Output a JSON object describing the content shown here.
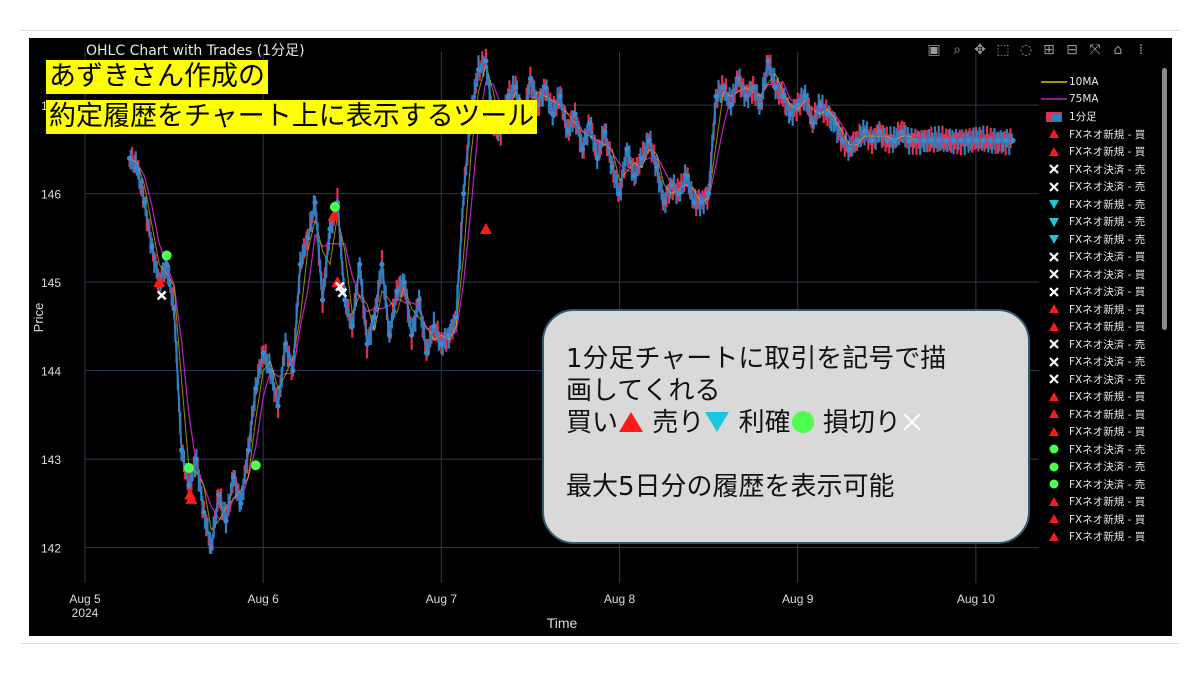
{
  "chart_data": {
    "type": "line",
    "title": "OHLC Chart with Trades (1分足)",
    "xlabel": "Time",
    "ylabel": "Price",
    "x_ticks": [
      "Aug 5\n2024",
      "Aug 6",
      "Aug 7",
      "Aug 8",
      "Aug 9",
      "Aug 10"
    ],
    "y_ticks": [
      142,
      143,
      144,
      145,
      146,
      147
    ],
    "ylim": [
      141.6,
      147.6
    ],
    "xlim_days": [
      "2024-08-05 00:00",
      "2024-08-10 08:30"
    ],
    "series": [
      {
        "name": "1分足",
        "color": "#2f7fc1",
        "x": [
          "08-05 06:00",
          "08-05 07:00",
          "08-05 08:00",
          "08-05 09:00",
          "08-05 10:00",
          "08-05 11:00",
          "08-05 12:00",
          "08-05 13:00",
          "08-05 14:00",
          "08-05 15:00",
          "08-05 16:00",
          "08-05 17:00",
          "08-05 18:00",
          "08-05 19:00",
          "08-05 20:00",
          "08-05 21:00",
          "08-05 22:00",
          "08-05 23:00",
          "08-06 00:00",
          "08-06 01:00",
          "08-06 02:00",
          "08-06 03:00",
          "08-06 04:00",
          "08-06 05:00",
          "08-06 06:00",
          "08-06 07:00",
          "08-06 08:00",
          "08-06 09:00",
          "08-06 10:00",
          "08-06 11:00",
          "08-06 12:00",
          "08-06 13:00",
          "08-06 14:00",
          "08-06 15:00",
          "08-06 16:00",
          "08-06 17:00",
          "08-06 18:00",
          "08-06 19:00",
          "08-06 20:00",
          "08-06 21:00",
          "08-06 22:00",
          "08-06 23:00",
          "08-07 00:00",
          "08-07 01:00",
          "08-07 02:00",
          "08-07 03:00",
          "08-07 04:00",
          "08-07 05:00",
          "08-07 06:00",
          "08-07 07:00",
          "08-07 08:00",
          "08-07 09:00",
          "08-07 10:00",
          "08-07 11:00",
          "08-07 12:00",
          "08-07 13:00",
          "08-07 14:00",
          "08-07 15:00",
          "08-07 16:00",
          "08-07 17:00",
          "08-07 18:00",
          "08-07 19:00",
          "08-07 20:00",
          "08-07 21:00",
          "08-07 22:00",
          "08-07 23:00",
          "08-08 00:00",
          "08-08 01:00",
          "08-08 02:00",
          "08-08 03:00",
          "08-08 04:00",
          "08-08 05:00",
          "08-08 06:00",
          "08-08 07:00",
          "08-08 08:00",
          "08-08 09:00",
          "08-08 10:00",
          "08-08 11:00",
          "08-08 12:00",
          "08-08 13:00",
          "08-08 14:00",
          "08-08 15:00",
          "08-08 16:00",
          "08-08 17:00",
          "08-08 18:00",
          "08-08 19:00",
          "08-08 20:00",
          "08-08 21:00",
          "08-08 22:00",
          "08-08 23:00",
          "08-09 00:00",
          "08-09 01:00",
          "08-09 02:00",
          "08-09 03:00",
          "08-09 04:00",
          "08-09 05:00",
          "08-09 06:00",
          "08-09 07:00",
          "08-09 08:00",
          "08-09 09:00",
          "08-09 10:00",
          "08-09 11:00",
          "08-09 12:00",
          "08-09 13:00",
          "08-09 14:00",
          "08-09 15:00",
          "08-09 16:00",
          "08-09 17:00",
          "08-09 18:00",
          "08-09 19:00",
          "08-09 20:00",
          "08-09 21:00",
          "08-09 22:00",
          "08-09 23:00",
          "08-10 00:00",
          "08-10 01:00",
          "08-10 02:00",
          "08-10 03:00",
          "08-10 04:00",
          "08-10 05:00"
        ],
        "values": [
          146.4,
          146.3,
          145.9,
          145.4,
          145.0,
          145.2,
          144.7,
          143.1,
          142.7,
          143.0,
          142.4,
          142.0,
          142.6,
          142.3,
          142.8,
          142.5,
          143.1,
          143.8,
          144.2,
          144.0,
          143.6,
          144.3,
          144.0,
          145.2,
          145.5,
          145.9,
          144.8,
          145.6,
          145.9,
          144.8,
          144.5,
          145.2,
          144.3,
          144.6,
          145.2,
          144.4,
          144.9,
          145.0,
          144.4,
          144.8,
          144.2,
          144.5,
          144.3,
          144.4,
          144.6,
          146.0,
          146.9,
          147.4,
          147.5,
          146.8,
          146.7,
          147.1,
          147.2,
          146.8,
          147.3,
          147.0,
          147.2,
          146.9,
          147.1,
          146.7,
          146.9,
          146.5,
          146.8,
          146.4,
          146.7,
          146.3,
          146.0,
          146.5,
          146.2,
          146.4,
          146.6,
          146.3,
          145.9,
          146.1,
          146.0,
          146.2,
          145.9,
          145.9,
          146.0,
          147.1,
          147.2,
          147.0,
          147.3,
          147.1,
          147.2,
          147.0,
          147.5,
          147.2,
          147.1,
          146.9,
          147.0,
          147.1,
          146.8,
          147.0,
          146.9,
          146.8,
          146.6,
          146.5,
          146.6,
          146.7,
          146.6,
          146.7,
          146.6,
          146.6,
          146.7,
          146.6,
          146.6,
          146.6,
          146.6,
          146.6,
          146.6,
          146.6,
          146.6,
          146.6,
          146.6,
          146.6,
          146.6,
          146.6,
          146.6,
          146.6
        ]
      },
      {
        "name": "10MA",
        "color": "#d8c400"
      },
      {
        "name": "75MA",
        "color": "#c020c0"
      }
    ],
    "trades": [
      {
        "x": "08-05 10:00",
        "y": 145.0,
        "type": "buy"
      },
      {
        "x": "08-05 10:20",
        "y": 144.85,
        "type": "stop"
      },
      {
        "x": "08-05 11:00",
        "y": 145.3,
        "type": "profit"
      },
      {
        "x": "08-05 14:00",
        "y": 142.9,
        "type": "profit"
      },
      {
        "x": "08-05 14:10",
        "y": 142.6,
        "type": "buy"
      },
      {
        "x": "08-05 14:20",
        "y": 142.55,
        "type": "buy"
      },
      {
        "x": "08-05 23:00",
        "y": 142.93,
        "type": "profit"
      },
      {
        "x": "08-06 09:30",
        "y": 145.75,
        "type": "buy"
      },
      {
        "x": "08-06 09:40",
        "y": 145.85,
        "type": "profit"
      },
      {
        "x": "08-06 10:00",
        "y": 145.0,
        "type": "buy"
      },
      {
        "x": "08-06 10:20",
        "y": 144.95,
        "type": "stop"
      },
      {
        "x": "08-06 10:40",
        "y": 144.88,
        "type": "stop"
      },
      {
        "x": "08-07 06:00",
        "y": 145.6,
        "type": "buy"
      },
      {
        "x": "08-07 06:20",
        "y": 146.85,
        "type": "buy"
      }
    ]
  },
  "banner": {
    "line1": "あずきさん作成の",
    "line2": "約定履歴をチャート上に表示するツール"
  },
  "callout": {
    "line1": "1分足チャートに取引を記号で描",
    "line2": "画してくれる",
    "buy_label": "買い",
    "sell_label": "売り",
    "profit_label": "利確",
    "stop_label": "損切り",
    "line4": "最大5日分の履歴を表示可能"
  },
  "legend": {
    "items": [
      {
        "label": "10MA",
        "symbol": "line",
        "color": "#d8c400"
      },
      {
        "label": "75MA",
        "symbol": "line",
        "color": "#c020c0"
      },
      {
        "label": "1分足",
        "symbol": "candle",
        "color": "#2f7fc1"
      },
      {
        "label": "FXネオ新規 - 買",
        "symbol": "triangle-up",
        "color": "#ff1a1a"
      },
      {
        "label": "FXネオ新規 - 買",
        "symbol": "triangle-up",
        "color": "#ff1a1a"
      },
      {
        "label": "FXネオ決済 - 売",
        "symbol": "x",
        "color": "#ffffff"
      },
      {
        "label": "FXネオ決済 - 売",
        "symbol": "x",
        "color": "#ffffff"
      },
      {
        "label": "FXネオ新規 - 売",
        "symbol": "triangle-down",
        "color": "#19c8e0"
      },
      {
        "label": "FXネオ新規 - 売",
        "symbol": "triangle-down",
        "color": "#19c8e0"
      },
      {
        "label": "FXネオ新規 - 売",
        "symbol": "triangle-down",
        "color": "#19c8e0"
      },
      {
        "label": "FXネオ決済 - 買",
        "symbol": "x",
        "color": "#ffffff"
      },
      {
        "label": "FXネオ決済 - 買",
        "symbol": "x",
        "color": "#ffffff"
      },
      {
        "label": "FXネオ決済 - 買",
        "symbol": "x",
        "color": "#ffffff"
      },
      {
        "label": "FXネオ新規 - 買",
        "symbol": "triangle-up",
        "color": "#ff1a1a"
      },
      {
        "label": "FXネオ新規 - 買",
        "symbol": "triangle-up",
        "color": "#ff1a1a"
      },
      {
        "label": "FXネオ決済 - 売",
        "symbol": "x",
        "color": "#ffffff"
      },
      {
        "label": "FXネオ決済 - 売",
        "symbol": "x",
        "color": "#ffffff"
      },
      {
        "label": "FXネオ決済 - 売",
        "symbol": "x",
        "color": "#ffffff"
      },
      {
        "label": "FXネオ新規 - 買",
        "symbol": "triangle-up",
        "color": "#ff1a1a"
      },
      {
        "label": "FXネオ新規 - 買",
        "symbol": "triangle-up",
        "color": "#ff1a1a"
      },
      {
        "label": "FXネオ新規 - 買",
        "symbol": "triangle-up",
        "color": "#ff1a1a"
      },
      {
        "label": "FXネオ決済 - 売",
        "symbol": "circle",
        "color": "#4cff4c"
      },
      {
        "label": "FXネオ決済 - 売",
        "symbol": "circle",
        "color": "#4cff4c"
      },
      {
        "label": "FXネオ決済 - 売",
        "symbol": "circle",
        "color": "#4cff4c"
      },
      {
        "label": "FXネオ新規 - 買",
        "symbol": "triangle-up",
        "color": "#ff1a1a"
      },
      {
        "label": "FXネオ新規 - 買",
        "symbol": "triangle-up",
        "color": "#ff1a1a"
      },
      {
        "label": "FXネオ新規 - 買",
        "symbol": "triangle-up",
        "color": "#ff1a1a"
      }
    ]
  },
  "toolbar": {
    "icons": [
      "camera-icon",
      "zoom-icon",
      "pan-icon",
      "box-select-icon",
      "lasso-icon",
      "zoom-in-icon",
      "zoom-out-icon",
      "autoscale-icon",
      "home-icon",
      "plotly-logo-icon"
    ]
  },
  "colors": {
    "background": "#000000",
    "grid": "#2a3a52",
    "buy": "#ff1a1a",
    "sell": "#19c8e0",
    "profit": "#4cff4c",
    "stop": "#ffffff",
    "banner": "#ffff00"
  }
}
